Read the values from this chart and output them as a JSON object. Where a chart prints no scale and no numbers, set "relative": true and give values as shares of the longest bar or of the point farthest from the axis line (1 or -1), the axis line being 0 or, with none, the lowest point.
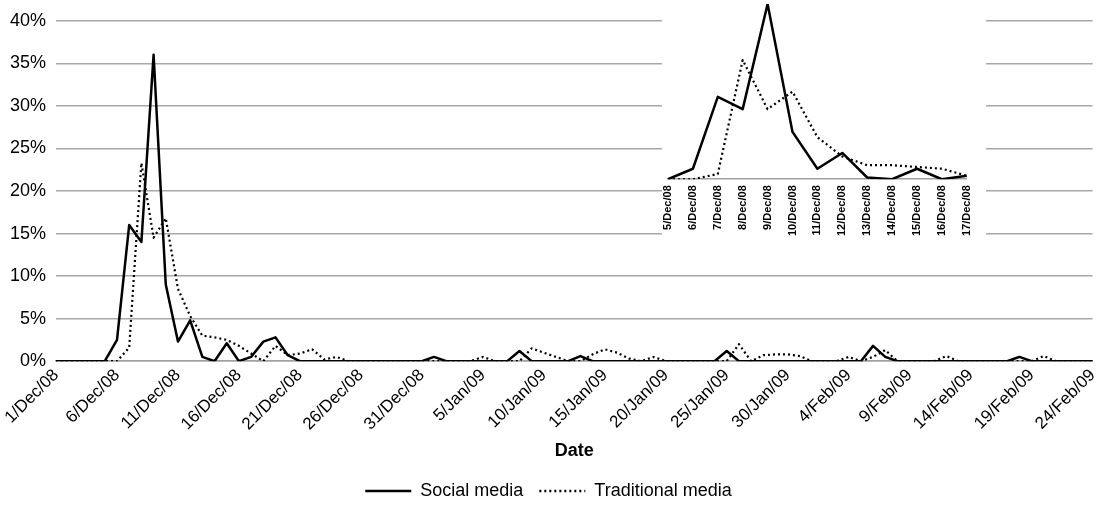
{
  "chart_data": [
    {
      "type": "line",
      "xlabel": "Date",
      "legend": "bottom",
      "grid": "y",
      "marker": "none",
      "ylim": [
        0,
        40
      ],
      "yticks": [
        {
          "value": 0,
          "label": "0%"
        },
        {
          "value": 5,
          "label": "5%"
        },
        {
          "value": 10,
          "label": "10%"
        },
        {
          "value": 15,
          "label": "15%"
        },
        {
          "value": 20,
          "label": "20%"
        },
        {
          "value": 25,
          "label": "25%"
        },
        {
          "value": 30,
          "label": "30%"
        },
        {
          "value": 35,
          "label": "35%"
        },
        {
          "value": 40,
          "label": "40%"
        }
      ],
      "categories": [
        "1/Dec/08",
        null,
        null,
        null,
        null,
        "6/Dec/08",
        null,
        null,
        null,
        null,
        "11/Dec/08",
        null,
        null,
        null,
        null,
        "16/Dec/08",
        null,
        null,
        null,
        null,
        "21/Dec/08",
        null,
        null,
        null,
        null,
        "26/Dec/08",
        null,
        null,
        null,
        null,
        "31/Dec/08",
        null,
        null,
        null,
        null,
        "5/Jan/09",
        null,
        null,
        null,
        null,
        "10/Jan/09",
        null,
        null,
        null,
        null,
        "15/Jan/09",
        null,
        null,
        null,
        null,
        "20/Jan/09",
        null,
        null,
        null,
        null,
        "25/Jan/09",
        null,
        null,
        null,
        null,
        "30/Jan/09",
        null,
        null,
        null,
        null,
        "4/Feb/09",
        null,
        null,
        null,
        null,
        "9/Feb/09",
        null,
        null,
        null,
        null,
        "14/Feb/09",
        null,
        null,
        null,
        null,
        "19/Feb/09",
        null,
        null,
        null,
        null,
        "24/Feb/09"
      ],
      "series": [
        {
          "name": "Social media",
          "color": "#000000",
          "line_style": "solid",
          "values": [
            0,
            0,
            0,
            0,
            0,
            2.5,
            16,
            14,
            36,
            9,
            2.3,
            4.8,
            0.5,
            0,
            2.1,
            0,
            0.5,
            2.3,
            2.8,
            0.7,
            0,
            0,
            0,
            0,
            0,
            0,
            0,
            0,
            0,
            0,
            0,
            0.5,
            0,
            0,
            0,
            0,
            0,
            0,
            1.2,
            0,
            0,
            0,
            0,
            0.6,
            0,
            0,
            0,
            0,
            0,
            0,
            0,
            0,
            0,
            0,
            0,
            1.2,
            0,
            0,
            0,
            0,
            0,
            0,
            0,
            0,
            0,
            0,
            0,
            1.8,
            0.5,
            0,
            0,
            0,
            0,
            0,
            0,
            0,
            0,
            0,
            0,
            0.5,
            0,
            0,
            0,
            0,
            0,
            0
          ]
        },
        {
          "name": "Traditional media",
          "color": "#000000",
          "line_style": "dotted",
          "values": [
            0,
            0,
            0,
            0,
            0,
            0,
            1.6,
            23.3,
            14.5,
            16.8,
            8.5,
            5.3,
            3,
            2.8,
            2.5,
            1.8,
            0.9,
            0,
            1.8,
            0.7,
            0.9,
            1.4,
            0.2,
            0.5,
            0,
            0,
            0,
            0,
            0,
            0,
            0,
            0,
            0,
            0,
            0,
            0.5,
            0,
            0,
            0,
            1.5,
            1,
            0.5,
            0,
            0,
            0.8,
            1.4,
            1,
            0.3,
            0,
            0.5,
            0,
            0,
            0,
            0,
            0,
            0,
            2,
            0,
            0.7,
            0.8,
            0.8,
            0.6,
            0,
            0,
            0,
            0.5,
            0,
            0.5,
            1.3,
            0,
            0,
            0,
            0,
            0.6,
            0,
            0,
            0,
            0,
            0,
            0,
            0,
            0.6,
            0,
            0,
            0,
            0
          ]
        }
      ]
    },
    {
      "type": "line",
      "relative": true,
      "marker": "none",
      "categories": [
        "5/Dec/08",
        "6/Dec/08",
        "7/Dec/08",
        "8/Dec/08",
        "9/Dec/08",
        "10/Dec/08",
        "11/Dec/08",
        "12/Dec/08",
        "13/Dec/08",
        "14/Dec/08",
        "15/Dec/08",
        "16/Dec/08",
        "17/Dec/08"
      ],
      "series": [
        {
          "color": "#000000",
          "line_style": "solid",
          "values": [
            0,
            0.06,
            0.47,
            0.4,
            1,
            0.27,
            0.06,
            0.15,
            0.01,
            0,
            0.06,
            0,
            0.02
          ]
        },
        {
          "color": "#000000",
          "line_style": "dotted",
          "values": [
            0,
            0,
            0.03,
            0.68,
            0.4,
            0.5,
            0.24,
            0.13,
            0.08,
            0.08,
            0.07,
            0.06,
            0.02
          ]
        }
      ]
    }
  ]
}
